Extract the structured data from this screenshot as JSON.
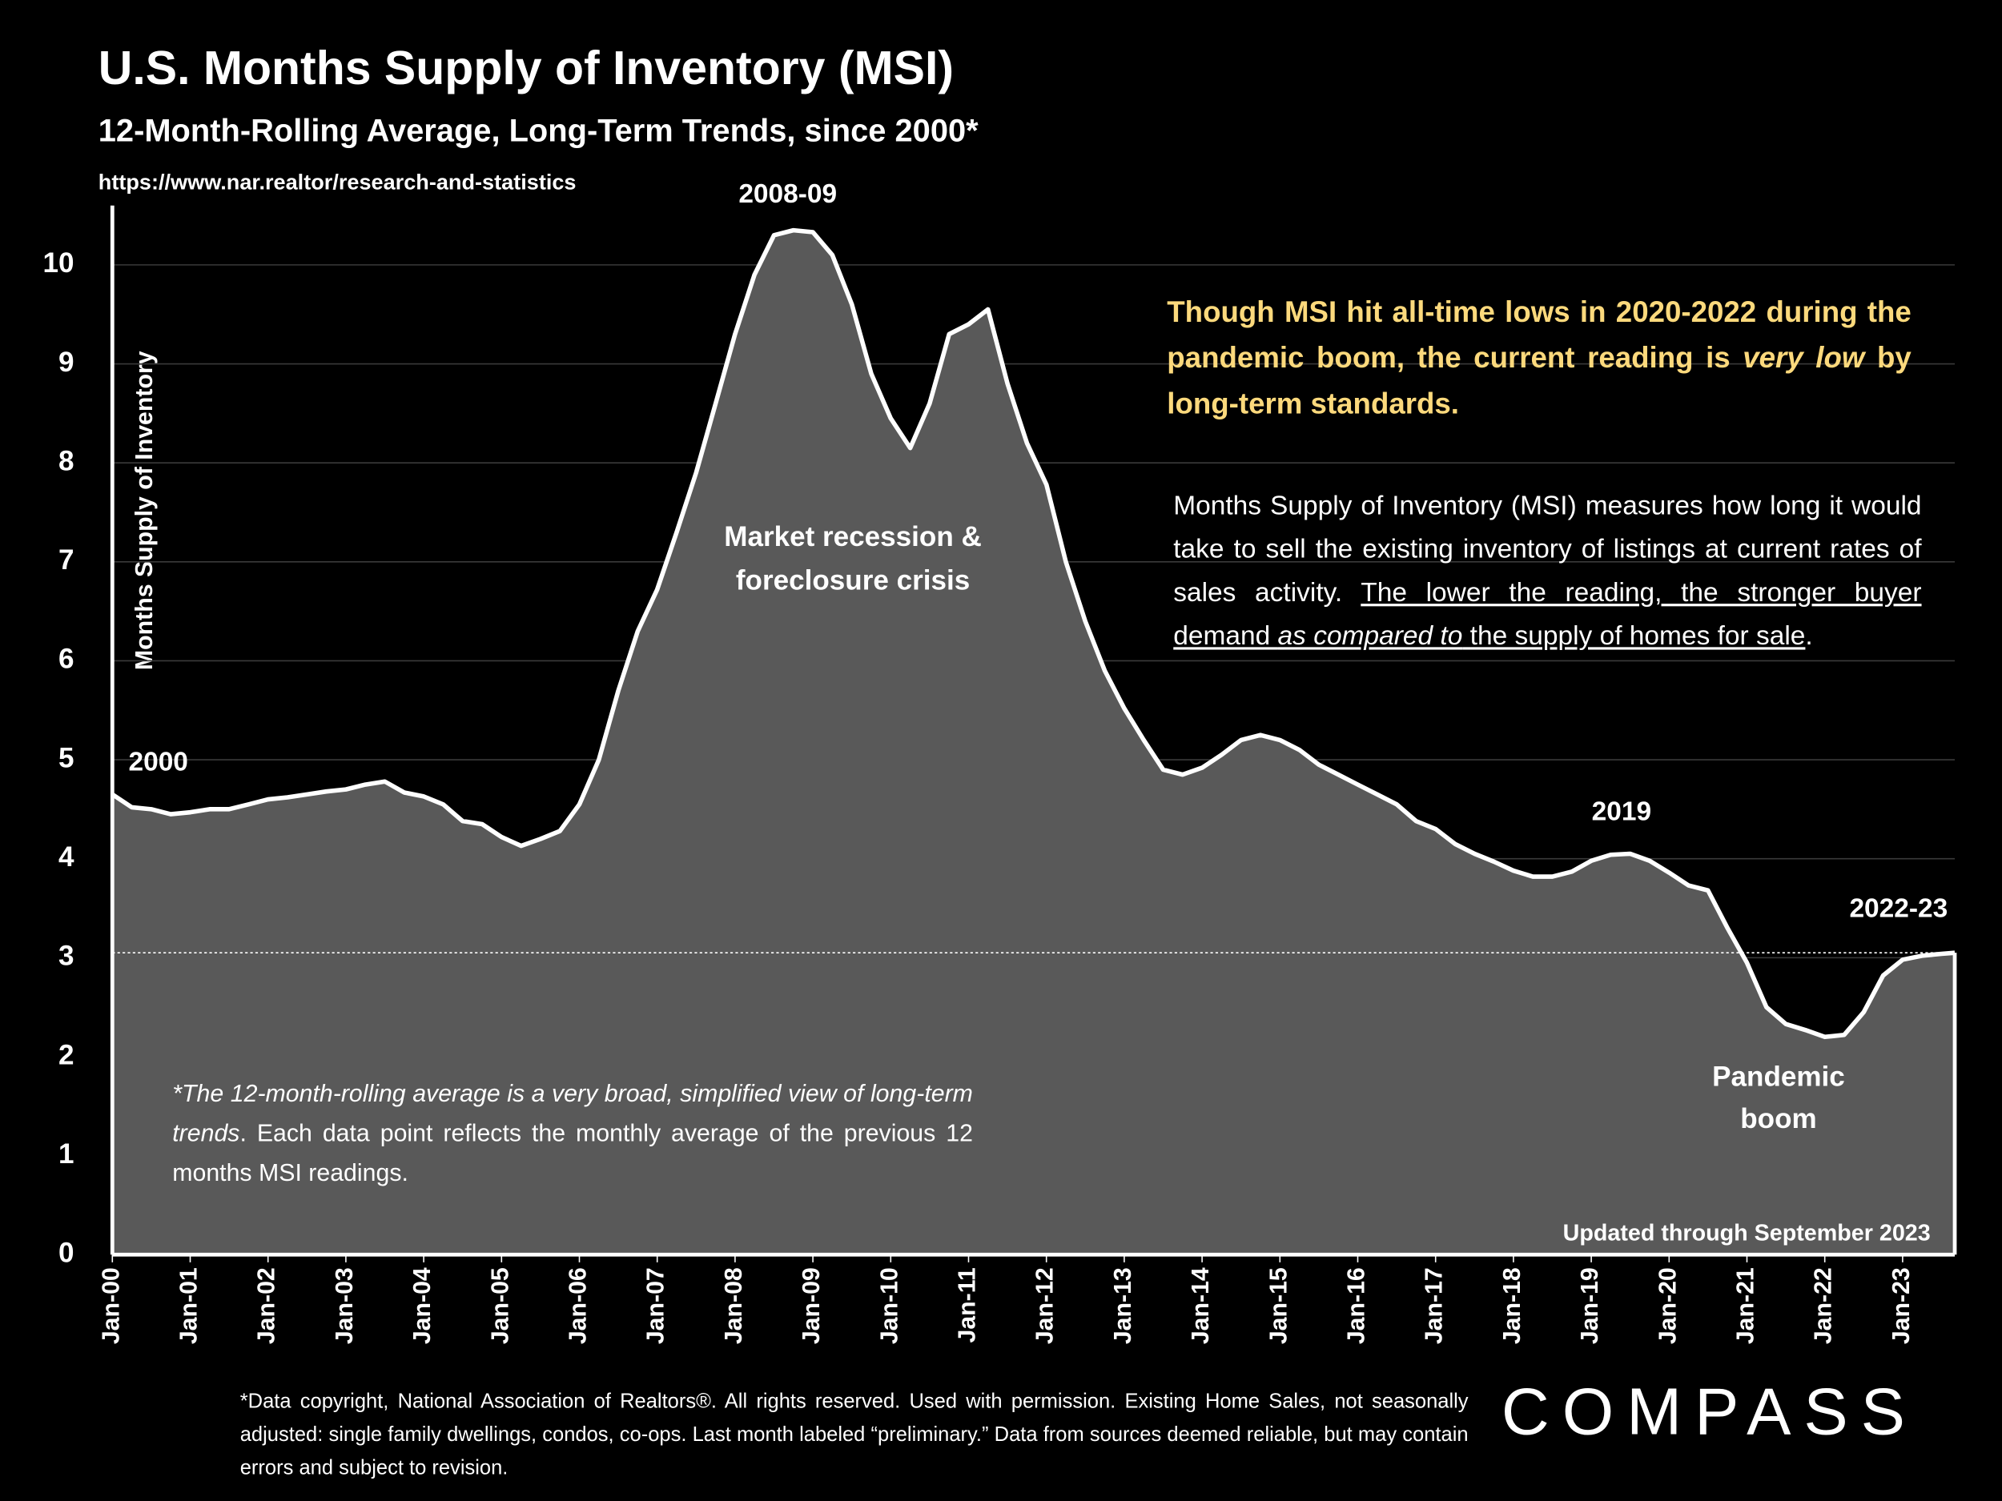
{
  "chart_data": {
    "type": "area",
    "title": "U.S. Months Supply of Inventory (MSI)",
    "subtitle": "12-Month-Rolling Average, Long-Term Trends, since 2000*",
    "source": "https://www.nar.realtor/research-and-statistics",
    "y_label": "Months Supply of Inventory",
    "x": [
      2000,
      2000.25,
      2000.5,
      2000.75,
      2001,
      2001.25,
      2001.5,
      2001.75,
      2002,
      2002.25,
      2002.5,
      2002.75,
      2003,
      2003.25,
      2003.5,
      2003.75,
      2004,
      2004.25,
      2004.5,
      2004.75,
      2005,
      2005.25,
      2005.5,
      2005.75,
      2006,
      2006.25,
      2006.5,
      2006.75,
      2007,
      2007.25,
      2007.5,
      2007.75,
      2008,
      2008.25,
      2008.5,
      2008.75,
      2009,
      2009.25,
      2009.5,
      2009.75,
      2010,
      2010.25,
      2010.5,
      2010.75,
      2011,
      2011.25,
      2011.5,
      2011.75,
      2012,
      2012.25,
      2012.5,
      2012.75,
      2013,
      2013.25,
      2013.5,
      2013.75,
      2014,
      2014.25,
      2014.5,
      2014.75,
      2015,
      2015.25,
      2015.5,
      2015.75,
      2016,
      2016.25,
      2016.5,
      2016.75,
      2017,
      2017.25,
      2017.5,
      2017.75,
      2018,
      2018.25,
      2018.5,
      2018.75,
      2019,
      2019.25,
      2019.5,
      2019.75,
      2020,
      2020.25,
      2020.5,
      2020.75,
      2021,
      2021.25,
      2021.5,
      2021.75,
      2022,
      2022.25,
      2022.5,
      2022.75,
      2023,
      2023.25,
      2023.5,
      2023.67
    ],
    "series": [
      {
        "name": "MSI",
        "color": "#ffffff",
        "fill": "#595959",
        "values": [
          4.65,
          4.52,
          4.5,
          4.45,
          4.47,
          4.5,
          4.5,
          4.55,
          4.6,
          4.62,
          4.65,
          4.68,
          4.7,
          4.75,
          4.78,
          4.67,
          4.63,
          4.55,
          4.38,
          4.35,
          4.22,
          4.13,
          4.2,
          4.28,
          4.55,
          5.0,
          5.7,
          6.3,
          6.72,
          7.3,
          7.9,
          8.6,
          9.3,
          9.9,
          10.3,
          10.35,
          10.33,
          10.1,
          9.6,
          8.9,
          8.45,
          8.15,
          8.6,
          9.3,
          9.4,
          9.55,
          8.8,
          8.2,
          7.78,
          7.0,
          6.4,
          5.9,
          5.52,
          5.2,
          4.9,
          4.85,
          4.92,
          5.05,
          5.2,
          5.25,
          5.2,
          5.1,
          4.95,
          4.85,
          4.75,
          4.65,
          4.55,
          4.38,
          4.3,
          4.15,
          4.05,
          3.97,
          3.88,
          3.82,
          3.82,
          3.87,
          3.98,
          4.04,
          4.05,
          3.98,
          3.86,
          3.73,
          3.68,
          3.3,
          2.95,
          2.5,
          2.33,
          2.27,
          2.2,
          2.22,
          2.45,
          2.82,
          2.98,
          3.02,
          3.04,
          3.05
        ]
      }
    ],
    "xlim": [
      2000,
      2023.67
    ],
    "xticks": [
      {
        "value": 2000,
        "label": "Jan-00"
      },
      {
        "value": 2001,
        "label": "Jan-01"
      },
      {
        "value": 2002,
        "label": "Jan-02"
      },
      {
        "value": 2003,
        "label": "Jan-03"
      },
      {
        "value": 2004,
        "label": "Jan-04"
      },
      {
        "value": 2005,
        "label": "Jan-05"
      },
      {
        "value": 2006,
        "label": "Jan-06"
      },
      {
        "value": 2007,
        "label": "Jan-07"
      },
      {
        "value": 2008,
        "label": "Jan-08"
      },
      {
        "value": 2009,
        "label": "Jan-09"
      },
      {
        "value": 2010,
        "label": "Jan-10"
      },
      {
        "value": 2011,
        "label": "Jan-11"
      },
      {
        "value": 2012,
        "label": "Jan-12"
      },
      {
        "value": 2013,
        "label": "Jan-13"
      },
      {
        "value": 2014,
        "label": "Jan-14"
      },
      {
        "value": 2015,
        "label": "Jan-15"
      },
      {
        "value": 2016,
        "label": "Jan-16"
      },
      {
        "value": 2017,
        "label": "Jan-17"
      },
      {
        "value": 2018,
        "label": "Jan-18"
      },
      {
        "value": 2019,
        "label": "Jan-19"
      },
      {
        "value": 2020,
        "label": "Jan-20"
      },
      {
        "value": 2021,
        "label": "Jan-21"
      },
      {
        "value": 2022,
        "label": "Jan-22"
      },
      {
        "value": 2023,
        "label": "Jan-23"
      }
    ],
    "ylim": [
      0,
      10.6
    ],
    "yticks": [
      0,
      1,
      2,
      3,
      4,
      5,
      6,
      7,
      8,
      9,
      10
    ],
    "grid": true,
    "reference_line": 3.05,
    "labels": {
      "peak": "2008-09",
      "start": "2000",
      "y2019": "2019",
      "end": "2022-23",
      "recession": [
        "Market recession &",
        "foreclosure crisis"
      ],
      "pandemic": [
        "Pandemic",
        "boom"
      ],
      "updated": "Updated through September 2023"
    },
    "highlight_note": [
      "Though MSI hit all-time lows in 2020-2022 during the pandemic boom, the current reading is ",
      "very low",
      " by long-term standards."
    ],
    "definition_note": [
      "Months Supply of Inventory (MSI) measures how long it would take to sell the existing inventory of listings at current rates of sales activity. ",
      "The lower the reading, the stronger buyer demand ",
      "as compared to",
      " the supply of homes for sale",
      "."
    ],
    "method_note": [
      "*The 12-month-rolling average is a very broad, simplified view of long-term trends",
      ". Each data point reflects the monthly average of the previous 12 months MSI readings."
    ],
    "footnote": "*Data copyright, National Association of Realtors®. All rights reserved. Used with permission. Existing Home Sales, not seasonally adjusted:  single family dwellings, condos, co-ops. Last month labeled “preliminary.” Data from sources deemed reliable, but may contain errors and subject to revision.",
    "logo": "COMPASS"
  }
}
